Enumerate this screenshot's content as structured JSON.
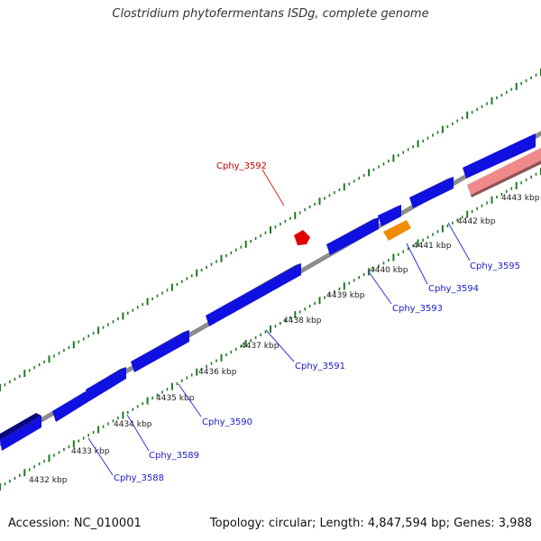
{
  "title": "Clostridium phytofermentans ISDg, complete genome",
  "footer": {
    "accession": "Accession: NC_010001",
    "summary": "Topology: circular; Length: 4,847,594 bp; Genes: 3,988"
  },
  "colors": {
    "backbone": "#8c8c8c",
    "tick": "#1f7a1f",
    "gene_forward": "#1010e0",
    "gene_highlight": "#e00000",
    "gene_orange": "#f08c00",
    "gene_pink": "#f08a8a",
    "label_blue": "#1a1acc",
    "label_red": "#cc0000",
    "leader_blue": "#3333dd",
    "leader_red": "#dd2222"
  },
  "scale": {
    "labels": [
      "4432 kbp",
      "4433 kbp",
      "4434 kbp",
      "4435 kbp",
      "4436 kbp",
      "4437 kbp",
      "4438 kbp",
      "4439 kbp",
      "4440 kbp",
      "4441 kbp",
      "4442 kbp",
      "4443 kbp"
    ]
  },
  "genes": [
    {
      "name": "Cphy_3588",
      "type": "cds"
    },
    {
      "name": "Cphy_3589",
      "type": "cds"
    },
    {
      "name": "Cphy_3590",
      "type": "cds"
    },
    {
      "name": "Cphy_3591",
      "type": "cds"
    },
    {
      "name": "Cphy_3592",
      "type": "highlight"
    },
    {
      "name": "Cphy_3593",
      "type": "cds"
    },
    {
      "name": "Cphy_3594",
      "type": "cds"
    },
    {
      "name": "Cphy_3595",
      "type": "cds"
    }
  ]
}
